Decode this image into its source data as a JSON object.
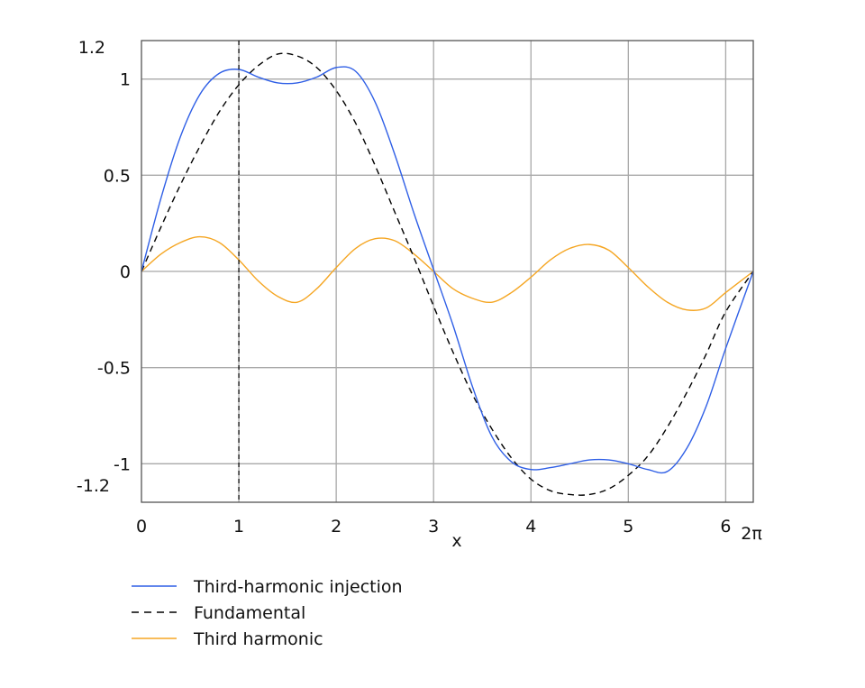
{
  "chart_data": {
    "type": "line",
    "title": "",
    "xlabel": "x",
    "ylabel": "",
    "xlim": [
      0,
      6.2832
    ],
    "ylim": [
      -1.2,
      1.2
    ],
    "grid": true,
    "legend_position": "bottom-left",
    "x_ticks": [
      {
        "value": 0,
        "label": "0"
      },
      {
        "value": 1,
        "label": "1"
      },
      {
        "value": 2,
        "label": "2"
      },
      {
        "value": 3,
        "label": "3"
      },
      {
        "value": 4,
        "label": "4"
      },
      {
        "value": 5,
        "label": "5"
      },
      {
        "value": 6,
        "label": "6"
      },
      {
        "value": 6.2832,
        "label": "2π"
      }
    ],
    "y_ticks": [
      {
        "value": 1.2,
        "label": "1.2"
      },
      {
        "value": 1,
        "label": "1"
      },
      {
        "value": 0.5,
        "label": "0.5"
      },
      {
        "value": 0,
        "label": "0"
      },
      {
        "value": -0.5,
        "label": "-0.5"
      },
      {
        "value": -1,
        "label": "-1"
      },
      {
        "value": -1.2,
        "label": "-1.2"
      }
    ],
    "marker_line": {
      "x": 1,
      "style": "dashed",
      "color": "#000000"
    },
    "x": [
      0,
      0.2,
      0.4,
      0.6,
      0.8,
      1.0,
      1.2,
      1.4,
      1.6,
      1.8,
      2.0,
      2.2,
      2.4,
      2.6,
      2.8,
      3.0,
      3.2,
      3.4,
      3.6,
      3.8,
      4.0,
      4.2,
      4.4,
      4.6,
      4.8,
      5.0,
      5.2,
      5.4,
      5.6,
      5.8,
      6.0,
      6.2832
    ],
    "series": [
      {
        "name": "Third-harmonic injection",
        "color": "#2f5fe6",
        "dash": "solid",
        "values": [
          0,
          0.38,
          0.7,
          0.92,
          1.03,
          1.05,
          1.01,
          0.98,
          0.98,
          1.01,
          1.06,
          1.04,
          0.88,
          0.61,
          0.3,
          0.01,
          -0.28,
          -0.6,
          -0.86,
          -0.99,
          -1.03,
          -1.02,
          -1.0,
          -0.98,
          -0.98,
          -1.0,
          -1.03,
          -1.04,
          -0.92,
          -0.7,
          -0.4,
          0
        ]
      },
      {
        "name": "Fundamental",
        "color": "#000000",
        "dash": "dashed",
        "values": [
          0,
          0.23,
          0.45,
          0.65,
          0.83,
          0.97,
          1.07,
          1.13,
          1.12,
          1.06,
          0.94,
          0.77,
          0.55,
          0.31,
          0.07,
          -0.18,
          -0.42,
          -0.64,
          -0.82,
          -0.97,
          -1.08,
          -1.14,
          -1.16,
          -1.16,
          -1.13,
          -1.06,
          -0.96,
          -0.81,
          -0.63,
          -0.43,
          -0.21,
          0
        ]
      },
      {
        "name": "Third harmonic",
        "color": "#f5a623",
        "dash": "solid",
        "values": [
          0,
          0.09,
          0.15,
          0.18,
          0.15,
          0.06,
          -0.05,
          -0.13,
          -0.16,
          -0.09,
          0.02,
          0.12,
          0.17,
          0.16,
          0.09,
          0.0,
          -0.09,
          -0.14,
          -0.16,
          -0.11,
          -0.03,
          0.06,
          0.12,
          0.14,
          0.11,
          0.02,
          -0.08,
          -0.16,
          -0.2,
          -0.19,
          -0.11,
          0
        ]
      }
    ]
  }
}
